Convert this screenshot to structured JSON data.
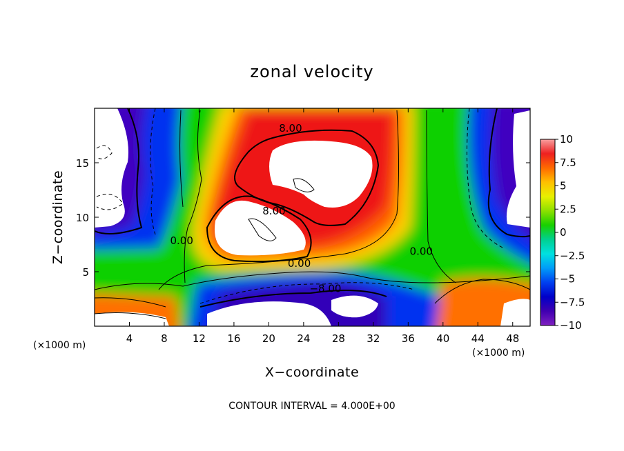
{
  "chart_data": {
    "type": "heatmap",
    "title": "zonal velocity",
    "xlabel": "X−coordinate",
    "ylabel": "Z−coordinate",
    "x_unit_left": "(×1000 m)",
    "x_unit_right": "(×1000 m)",
    "footer": "CONTOUR INTERVAL = 4.000E+00",
    "xlim": [
      0,
      50
    ],
    "ylim": [
      0,
      20
    ],
    "x_ticks": [
      4,
      8,
      12,
      16,
      20,
      24,
      28,
      32,
      36,
      40,
      44,
      48
    ],
    "x_tick_labels": [
      "4",
      "8",
      "12",
      "16",
      "20",
      "24",
      "28",
      "32",
      "36",
      "40",
      "44",
      "48"
    ],
    "y_ticks": [
      5,
      10,
      15
    ],
    "y_tick_labels": [
      "5",
      "10",
      "15"
    ],
    "colorbar": {
      "range": [
        -10,
        10
      ],
      "ticks": [
        10,
        7.5,
        5,
        2.5,
        0,
        -2.5,
        -5,
        -7.5,
        -10
      ],
      "tick_labels": [
        "10",
        "7.5",
        "5",
        "2.5",
        "0",
        "−2.5",
        "−5",
        "−7.5",
        "−10"
      ],
      "colors": [
        "#f8a0a0",
        "#ee2020",
        "#ff6a00",
        "#ffc000",
        "#e8f000",
        "#8ce000",
        "#18d000",
        "#00d090",
        "#00e0e0",
        "#009cf8",
        "#0040f0",
        "#0000c8",
        "#4000b0",
        "#8020c0"
      ]
    },
    "contour_labels": [
      {
        "text": "8.00",
        "x": 22.5,
        "z": 18.1
      },
      {
        "text": "8.00",
        "x": 20.6,
        "z": 10.5
      },
      {
        "text": "0.00",
        "x": 10.0,
        "z": 7.8
      },
      {
        "text": "0.00",
        "x": 23.5,
        "z": 5.7
      },
      {
        "text": "0.00",
        "x": 37.5,
        "z": 6.8
      },
      {
        "text": "−8.00",
        "x": 26.5,
        "z": 3.4
      }
    ],
    "fields": [
      {
        "x": 22.5,
        "z": 13.5,
        "value": 11,
        "note": "upper positive core"
      },
      {
        "x": 19.0,
        "z": 8.5,
        "value": 11,
        "note": "lower positive core"
      },
      {
        "x": 26.0,
        "z": 12.5,
        "value": 8,
        "note": "positive jet band"
      },
      {
        "x": 3.0,
        "z": 15.0,
        "value": -12,
        "note": "left negative region"
      },
      {
        "x": 47.5,
        "z": 13.0,
        "value": -12,
        "note": "right negative region"
      },
      {
        "x": 23.0,
        "z": 2.0,
        "value": -12,
        "note": "lower negative band"
      },
      {
        "x": 5.5,
        "z": 2.0,
        "value": 7,
        "note": "lower-left positive"
      },
      {
        "x": 43.5,
        "z": 2.0,
        "value": 8,
        "note": "lower-right positive"
      }
    ]
  }
}
